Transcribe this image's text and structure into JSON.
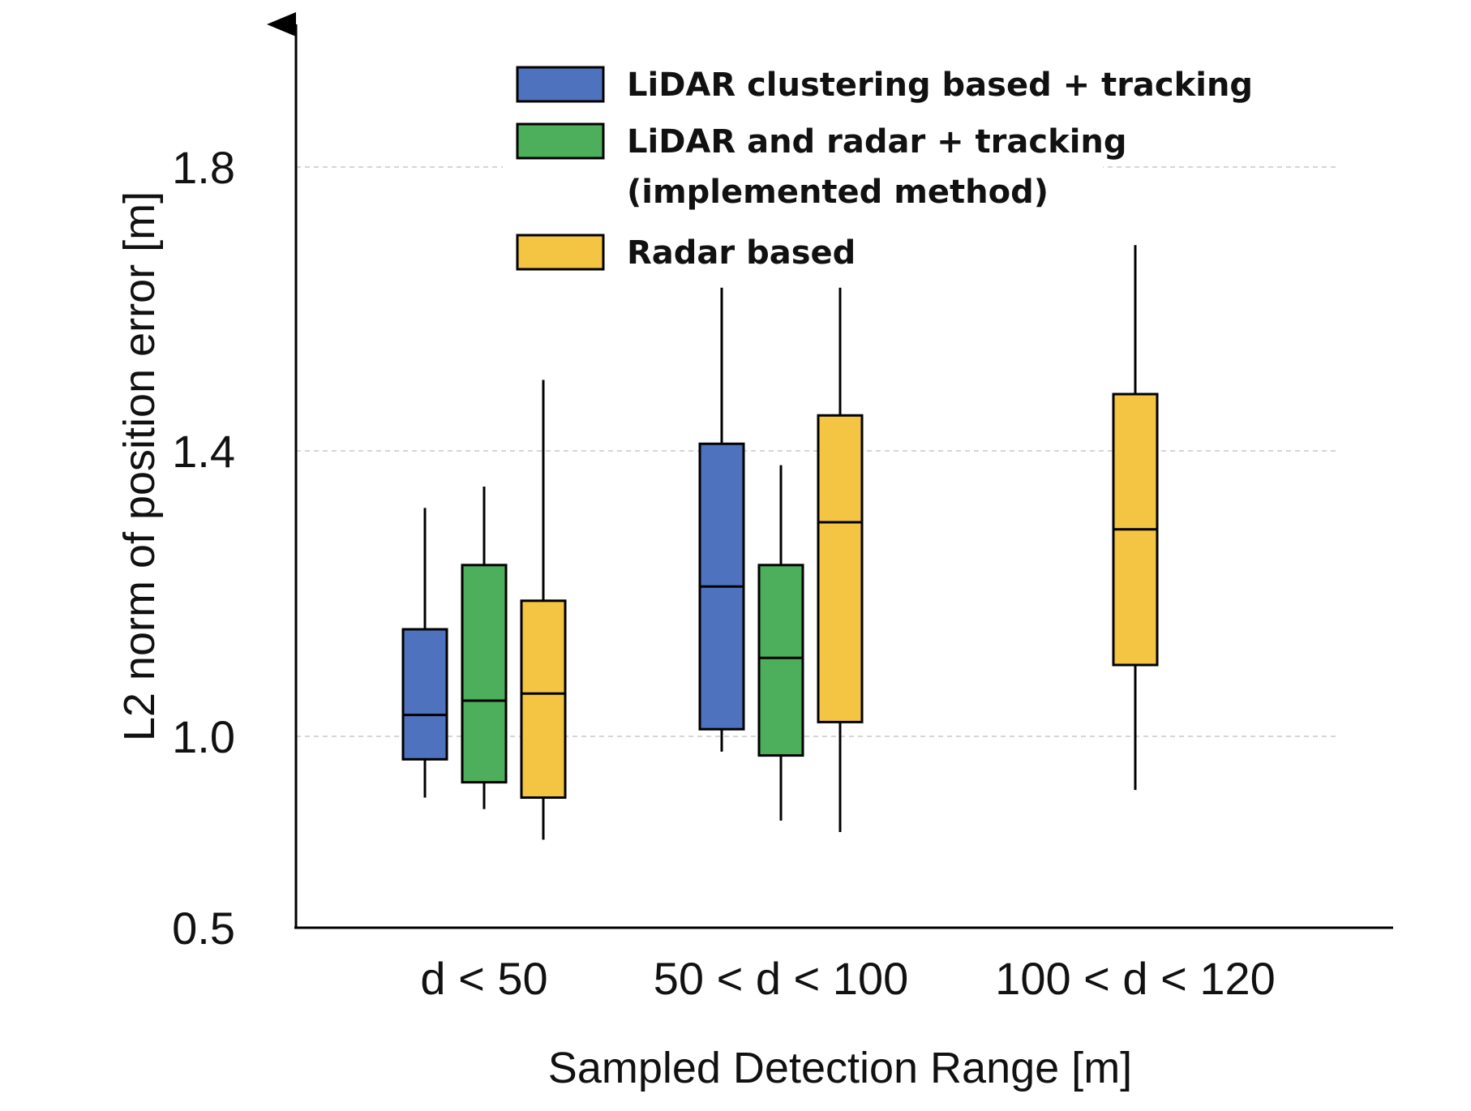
{
  "chart_data": {
    "type": "box",
    "title": "",
    "xlabel": "Sampled Detection Range [m]",
    "ylabel": "L2 norm of position error [m]",
    "ylim": [
      0.5,
      2.0
    ],
    "yticks": [
      "0.5",
      "1.0",
      "1.4",
      "1.8"
    ],
    "ytick_values": [
      0.5,
      1.0,
      1.4,
      1.8
    ],
    "grid": "horizontal dashed",
    "legend_position": "top-center",
    "categories": [
      "d < 50",
      "50 < d < 100",
      "100 < d < 120"
    ],
    "series": [
      {
        "name": "LiDAR clustering based + tracking",
        "color": "#4F72BE",
        "boxes": [
          {
            "category": "d < 50",
            "whisker_low": 0.84,
            "q1": 0.94,
            "median": 1.03,
            "q3": 1.15,
            "whisker_high": 1.32
          },
          {
            "category": "50 < d < 100",
            "whisker_low": 0.96,
            "q1": 1.01,
            "median": 1.21,
            "q3": 1.41,
            "whisker_high": 1.63
          }
        ]
      },
      {
        "name": "LiDAR and radar + tracking",
        "name_line2": "(implemented method)",
        "color": "#4DAE5C",
        "boxes": [
          {
            "category": "d < 50",
            "whisker_low": 0.81,
            "q1": 0.88,
            "median": 1.05,
            "q3": 1.24,
            "whisker_high": 1.35
          },
          {
            "category": "50 < d < 100",
            "whisker_low": 0.78,
            "q1": 0.95,
            "median": 1.11,
            "q3": 1.24,
            "whisker_high": 1.38
          }
        ]
      },
      {
        "name": "Radar based",
        "color": "#F4C443",
        "boxes": [
          {
            "category": "d < 50",
            "whisker_low": 0.73,
            "q1": 0.84,
            "median": 1.06,
            "q3": 1.19,
            "whisker_high": 1.5
          },
          {
            "category": "50 < d < 100",
            "whisker_low": 0.75,
            "q1": 1.02,
            "median": 1.3,
            "q3": 1.45,
            "whisker_high": 1.63
          },
          {
            "category": "100 < d < 120",
            "whisker_low": 0.86,
            "q1": 1.1,
            "median": 1.29,
            "q3": 1.48,
            "whisker_high": 1.69
          }
        ]
      }
    ]
  }
}
